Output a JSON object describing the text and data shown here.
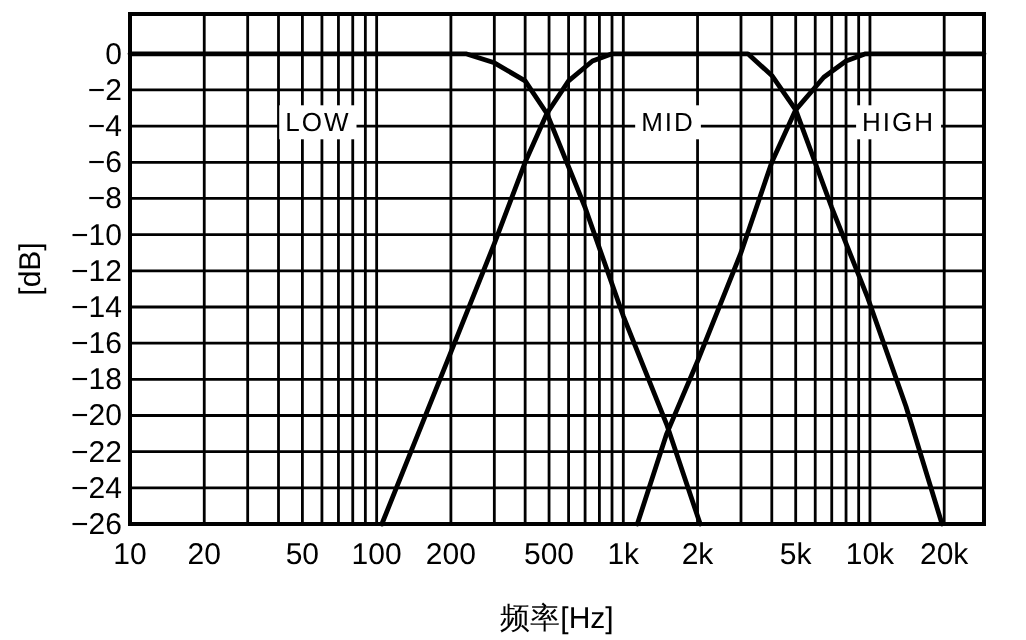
{
  "chart_data": {
    "type": "line",
    "xlabel": "频率[Hz]",
    "ylabel": "[dB]",
    "log": "x",
    "grid": true,
    "xlim": [
      10,
      29000
    ],
    "ylim": [
      -26,
      2.2
    ],
    "xticks": [
      10,
      20,
      {
        "value": 30,
        "label": null
      },
      {
        "value": 40,
        "label": null
      },
      50,
      {
        "value": 60,
        "label": null
      },
      {
        "value": 70,
        "label": null
      },
      {
        "value": 80,
        "label": null
      },
      {
        "value": 90,
        "label": null
      },
      100,
      200,
      {
        "value": 300,
        "label": null
      },
      {
        "value": 400,
        "label": null
      },
      500,
      {
        "value": 600,
        "label": null
      },
      {
        "value": 700,
        "label": null
      },
      {
        "value": 800,
        "label": null
      },
      {
        "value": 900,
        "label": null
      },
      {
        "value": 1000,
        "label": "1k"
      },
      {
        "value": 2000,
        "label": "2k"
      },
      {
        "value": 3000,
        "label": null
      },
      {
        "value": 4000,
        "label": null
      },
      {
        "value": 5000,
        "label": "5k"
      },
      {
        "value": 6000,
        "label": null
      },
      {
        "value": 7000,
        "label": null
      },
      {
        "value": 8000,
        "label": null
      },
      {
        "value": 9000,
        "label": null
      },
      {
        "value": 10000,
        "label": "10k"
      },
      {
        "value": 20000,
        "label": "20k"
      }
    ],
    "yticks": [
      0,
      -2,
      -4,
      -6,
      -8,
      -10,
      -12,
      -14,
      -16,
      -18,
      -20,
      -22,
      -24,
      -26
    ],
    "series": [
      {
        "name": "LOW",
        "color": "#000000",
        "x": [
          10,
          230,
          300,
          400,
          490,
          700,
          1000,
          1500,
          2050
        ],
        "values": [
          0,
          0,
          -0.5,
          -1.5,
          -3.3,
          -8.5,
          -14.5,
          -20.5,
          -26
        ]
      },
      {
        "name": "MID",
        "color": "#000000",
        "x": [
          105,
          200,
          300,
          400,
          490,
          600,
          750,
          900,
          3200,
          4000,
          5000,
          7000,
          9800,
          14000,
          19600
        ],
        "values": [
          -26,
          -16.5,
          -10.5,
          -6,
          -3.3,
          -1.5,
          -0.4,
          0,
          0,
          -1.2,
          -3.1,
          -8.5,
          -13.5,
          -19.5,
          -26
        ]
      },
      {
        "name": "HIGH",
        "color": "#000000",
        "x": [
          1140,
          1500,
          2000,
          3000,
          4000,
          5000,
          6500,
          8000,
          9600,
          29000
        ],
        "values": [
          -26,
          -21,
          -17,
          -11,
          -6,
          -3.1,
          -1.3,
          -0.4,
          0,
          0
        ]
      }
    ]
  }
}
